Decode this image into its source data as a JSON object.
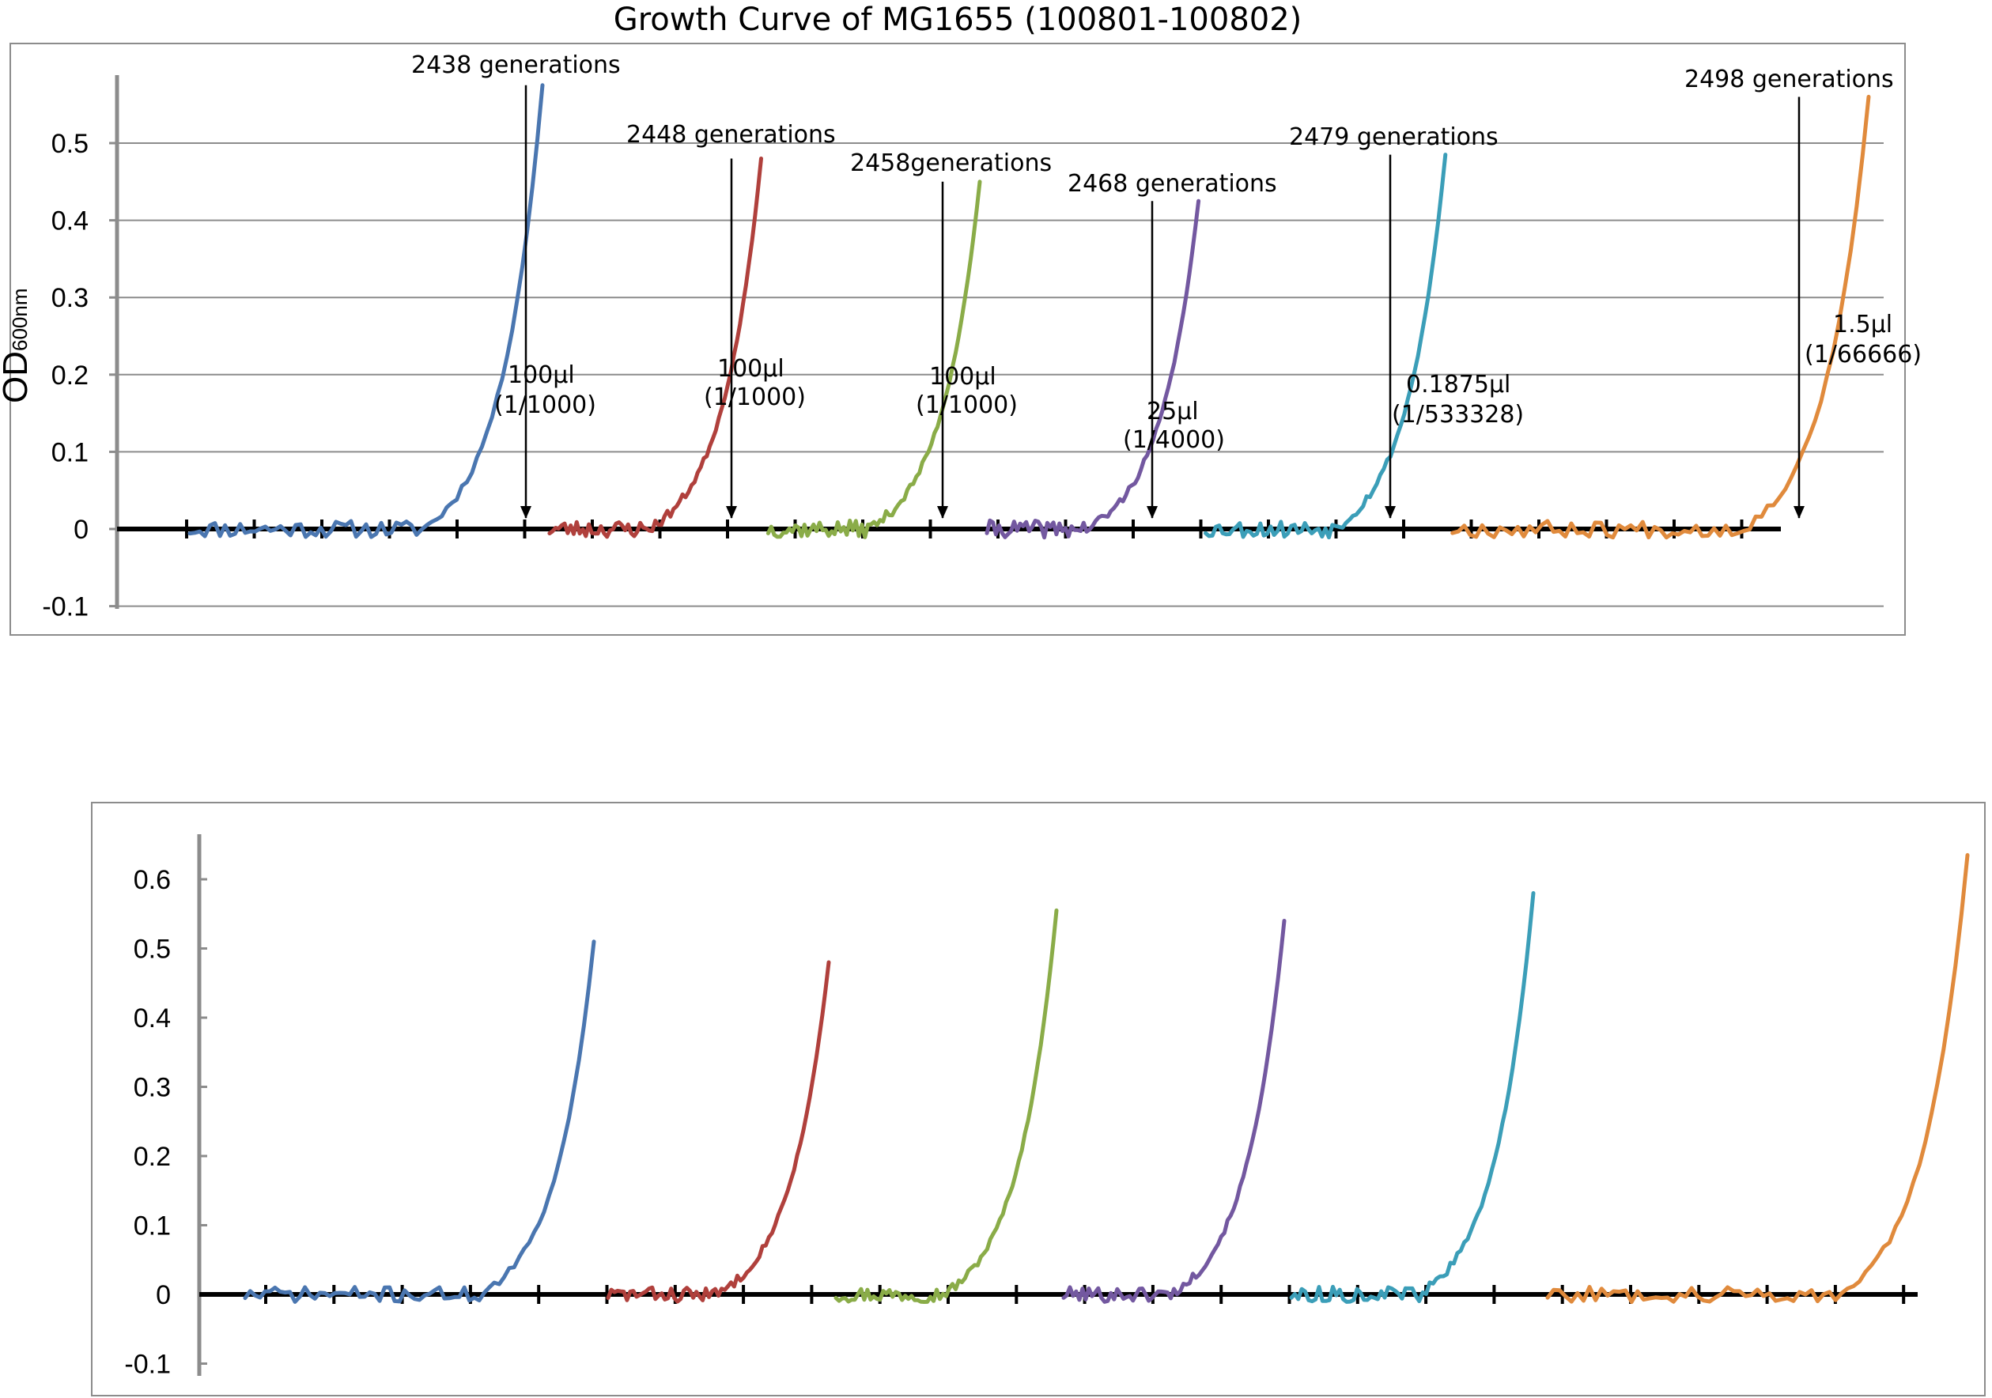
{
  "chart_data": [
    {
      "type": "line",
      "title": "Growth Curve of MG1655 (100801-100802)",
      "ylabel": "OD",
      "ylabel_sub": "600nm",
      "ylim": [
        -0.1,
        0.58
      ],
      "yticks": [
        -0.1,
        0,
        0.1,
        0.2,
        0.3,
        0.4,
        0.5
      ],
      "ytick_labels": [
        "-0.1",
        "0",
        "0.1",
        "0.2",
        "0.3",
        "0.4",
        "0.5"
      ],
      "grid": true,
      "series": [
        {
          "color": "#4a76b0",
          "x_start": 0,
          "x_rise": 3.3,
          "x_end": 5.0,
          "y_end": 0.575,
          "seed": 11
        },
        {
          "color": "#b0403c",
          "x_start": 5.1,
          "x_rise": 6.5,
          "x_end": 8.1,
          "y_end": 0.48,
          "seed": 23
        },
        {
          "color": "#8aac48",
          "x_start": 8.2,
          "x_rise": 9.6,
          "x_end": 11.2,
          "y_end": 0.45,
          "seed": 37
        },
        {
          "color": "#7358a0",
          "x_start": 11.3,
          "x_rise": 12.7,
          "x_end": 14.3,
          "y_end": 0.425,
          "seed": 41
        },
        {
          "color": "#3b9eb8",
          "x_start": 14.4,
          "x_rise": 16.2,
          "x_end": 17.8,
          "y_end": 0.485,
          "seed": 53
        },
        {
          "color": "#e08a3c",
          "x_start": 17.9,
          "x_rise": 22.0,
          "x_end": 23.8,
          "y_end": 0.56,
          "seed": 67
        }
      ],
      "annotations": [
        {
          "label": "2438 generations",
          "x": 5.0,
          "y": 0.575,
          "volume": "100μl",
          "dilution": "(1/1000)"
        },
        {
          "label": "2448 generations",
          "x": 8.1,
          "y": 0.48,
          "volume": "100μl",
          "dilution": "(1/1000)"
        },
        {
          "label": "2458generations",
          "x": 11.2,
          "y": 0.45,
          "volume": "100μl",
          "dilution": "(1/1000)"
        },
        {
          "label": "2468 generations",
          "x": 14.3,
          "y": 0.425,
          "volume": "25μl",
          "dilution": "(1/4000)"
        },
        {
          "label": "2479 generations",
          "x": 17.8,
          "y": 0.485,
          "volume": "0.1875μl",
          "dilution": "(1/533328)"
        },
        {
          "label": "2498 generations",
          "x": 23.8,
          "y": 0.56,
          "volume": "1.5μl",
          "dilution": "(1/66666)"
        }
      ]
    },
    {
      "type": "line",
      "title": "",
      "ylim": [
        -0.1,
        0.65
      ],
      "yticks": [
        -0.1,
        0,
        0.1,
        0.2,
        0.3,
        0.4,
        0.5,
        0.6
      ],
      "ytick_labels": [
        "-0.1",
        "0",
        "0.1",
        "0.2",
        "0.3",
        "0.4",
        "0.5",
        "0.6"
      ],
      "grid": false,
      "series": [
        {
          "color": "#4a76b0",
          "x_start": 0,
          "x_rise": 3.3,
          "x_end": 4.9,
          "y_end": 0.51,
          "seed": 71
        },
        {
          "color": "#b0403c",
          "x_start": 5.1,
          "x_rise": 6.6,
          "x_end": 8.2,
          "y_end": 0.48,
          "seed": 83
        },
        {
          "color": "#8aac48",
          "x_start": 8.3,
          "x_rise": 9.8,
          "x_end": 11.4,
          "y_end": 0.555,
          "seed": 97
        },
        {
          "color": "#7358a0",
          "x_start": 11.5,
          "x_rise": 13.0,
          "x_end": 14.6,
          "y_end": 0.54,
          "seed": 101
        },
        {
          "color": "#3b9eb8",
          "x_start": 14.7,
          "x_rise": 16.5,
          "x_end": 18.1,
          "y_end": 0.58,
          "seed": 113
        },
        {
          "color": "#e08a3c",
          "x_start": 18.3,
          "x_rise": 22.4,
          "x_end": 24.2,
          "y_end": 0.635,
          "seed": 127
        }
      ]
    }
  ]
}
